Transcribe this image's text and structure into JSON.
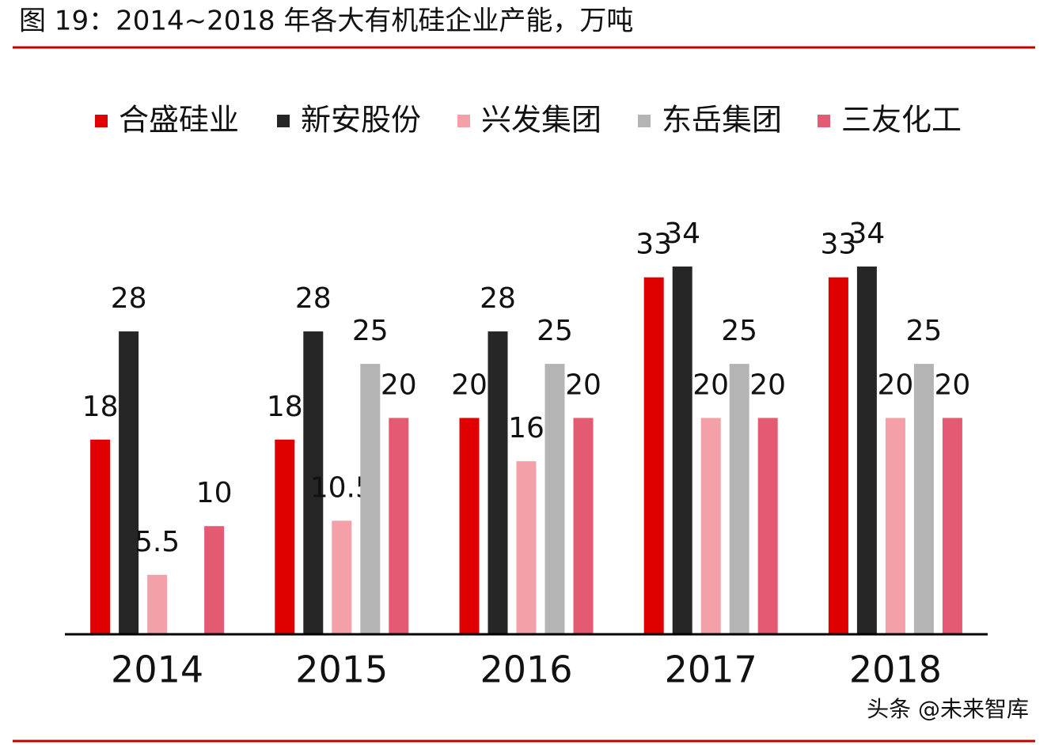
{
  "chart_data": {
    "type": "bar",
    "title": "图 19：2014~2018 年各大有机硅企业产能，万吨",
    "categories": [
      "2014",
      "2015",
      "2016",
      "2017",
      "2018"
    ],
    "series": [
      {
        "name": "合盛硅业",
        "color": "#e00000",
        "values": [
          18,
          18,
          20,
          33,
          33
        ]
      },
      {
        "name": "新安股份",
        "color": "#262626",
        "values": [
          28,
          28,
          28,
          34,
          34
        ]
      },
      {
        "name": "兴发集团",
        "color": "#f4a0a8",
        "values": [
          5.5,
          10.5,
          16,
          20,
          20
        ]
      },
      {
        "name": "东岳集团",
        "color": "#b4b4b4",
        "values": [
          null,
          25,
          25,
          25,
          25
        ]
      },
      {
        "name": "三友化工",
        "color": "#e35a72",
        "values": [
          10,
          20,
          20,
          20,
          20
        ]
      }
    ],
    "legend": "top",
    "watermark": "头条 @未来智库"
  }
}
